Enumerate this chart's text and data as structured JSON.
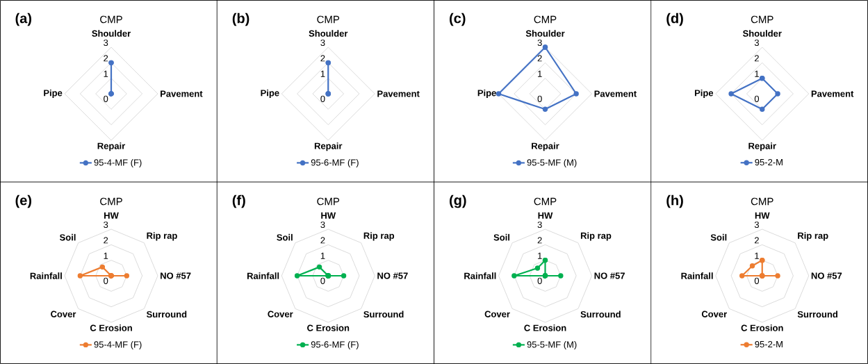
{
  "chart_data": [
    {
      "type": "radar",
      "title": "CMP",
      "annotations": [
        "(a)"
      ],
      "categories": [
        "Shoulder",
        "Pavement",
        "Repair",
        "Pipe"
      ],
      "ylim": [
        0,
        3
      ],
      "yticks": [
        0,
        1,
        2,
        3
      ],
      "grid": true,
      "legend": "bottom",
      "marker": "circle",
      "series": [
        {
          "name": "95-4-MF (F)",
          "color": "#4472c4",
          "values": [
            2,
            0,
            0,
            0
          ]
        }
      ]
    },
    {
      "type": "radar",
      "title": "CMP",
      "annotations": [
        "(b)"
      ],
      "categories": [
        "Shoulder",
        "Pavement",
        "Repair",
        "Pipe"
      ],
      "ylim": [
        0,
        3
      ],
      "yticks": [
        0,
        1,
        2,
        3
      ],
      "grid": true,
      "legend": "bottom",
      "marker": "circle",
      "series": [
        {
          "name": "95-6-MF (F)",
          "color": "#4472c4",
          "values": [
            2,
            0,
            0,
            0
          ]
        }
      ]
    },
    {
      "type": "radar",
      "title": "CMP",
      "annotations": [
        "(c)"
      ],
      "categories": [
        "Shoulder",
        "Pavement",
        "Repair",
        "Pipe"
      ],
      "ylim": [
        0,
        3
      ],
      "yticks": [
        0,
        1,
        2,
        3
      ],
      "grid": true,
      "legend": "bottom",
      "marker": "circle",
      "series": [
        {
          "name": "95-5-MF (M)",
          "color": "#4472c4",
          "values": [
            3,
            2,
            1,
            3
          ]
        }
      ]
    },
    {
      "type": "radar",
      "title": "CMP",
      "annotations": [
        "(d)"
      ],
      "categories": [
        "Shoulder",
        "Pavement",
        "Repair",
        "Pipe"
      ],
      "ylim": [
        0,
        3
      ],
      "yticks": [
        0,
        1,
        2,
        3
      ],
      "grid": true,
      "legend": "bottom",
      "marker": "circle",
      "series": [
        {
          "name": "95-2-M",
          "color": "#4472c4",
          "values": [
            1,
            1,
            1,
            2
          ]
        }
      ]
    },
    {
      "type": "radar",
      "title": "CMP",
      "annotations": [
        "(e)"
      ],
      "categories": [
        "HW",
        "Rip rap",
        "NO #57",
        "Surround",
        "C Erosion",
        "Cover",
        "Rainfall",
        "Soil"
      ],
      "ylim": [
        0,
        3
      ],
      "yticks": [
        0,
        1,
        2,
        3
      ],
      "grid": true,
      "legend": "bottom",
      "marker": "circle",
      "series": [
        {
          "name": "95-4-MF (F)",
          "color": "#ed7d31",
          "values": [
            0,
            0,
            1,
            0,
            0,
            0,
            2,
            0.8
          ]
        }
      ]
    },
    {
      "type": "radar",
      "title": "CMP",
      "annotations": [
        "(f)"
      ],
      "categories": [
        "HW",
        "Rip rap",
        "NO #57",
        "Surround",
        "C Erosion",
        "Cover",
        "Rainfall",
        "Soil"
      ],
      "ylim": [
        0,
        3
      ],
      "yticks": [
        0,
        1,
        2,
        3
      ],
      "grid": true,
      "legend": "bottom",
      "marker": "circle",
      "series": [
        {
          "name": "95-6-MF (F)",
          "color": "#00b050",
          "values": [
            0,
            0,
            1,
            0,
            0,
            0,
            2,
            0.8
          ]
        }
      ]
    },
    {
      "type": "radar",
      "title": "CMP",
      "annotations": [
        "(g)"
      ],
      "categories": [
        "HW",
        "Rip rap",
        "NO #57",
        "Surround",
        "C Erosion",
        "Cover",
        "Rainfall",
        "Soil"
      ],
      "ylim": [
        0,
        3
      ],
      "yticks": [
        0,
        1,
        2,
        3
      ],
      "grid": true,
      "legend": "bottom",
      "marker": "circle",
      "series": [
        {
          "name": "95-5-MF (M)",
          "color": "#00b050",
          "values": [
            1,
            0,
            1,
            0,
            0,
            0,
            2,
            0.7
          ]
        }
      ]
    },
    {
      "type": "radar",
      "title": "CMP",
      "annotations": [
        "(h)"
      ],
      "categories": [
        "HW",
        "Rip rap",
        "NO #57",
        "Surround",
        "C Erosion",
        "Cover",
        "Rainfall",
        "Soil"
      ],
      "ylim": [
        0,
        3
      ],
      "yticks": [
        0,
        1,
        2,
        3
      ],
      "grid": true,
      "legend": "bottom",
      "marker": "circle",
      "series": [
        {
          "name": "95-2-M",
          "color": "#ed7d31",
          "values": [
            1,
            0,
            1,
            0,
            0,
            0,
            1.3,
            0.9
          ]
        }
      ]
    }
  ]
}
